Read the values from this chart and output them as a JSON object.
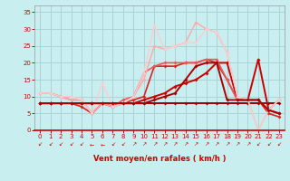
{
  "background_color": "#c8eef0",
  "grid_color": "#aad4d8",
  "xlabel": "Vent moyen/en rafales ( km/h )",
  "xlabel_color": "#cc0000",
  "tick_color": "#cc0000",
  "xlim": [
    -0.5,
    23.5
  ],
  "ylim": [
    0,
    37
  ],
  "yticks": [
    0,
    5,
    10,
    15,
    20,
    25,
    30,
    35
  ],
  "xticks": [
    0,
    1,
    2,
    3,
    4,
    5,
    6,
    7,
    8,
    9,
    10,
    11,
    12,
    13,
    14,
    15,
    16,
    17,
    18,
    19,
    20,
    21,
    22,
    23
  ],
  "lines": [
    {
      "comment": "dark red - nearly flat ~8, slight rise then drop end",
      "x": [
        0,
        1,
        2,
        3,
        4,
        5,
        6,
        7,
        8,
        9,
        10,
        11,
        12,
        13,
        14,
        15,
        16,
        17,
        18,
        19,
        20,
        21,
        22,
        23
      ],
      "y": [
        8,
        8,
        8,
        8,
        8,
        8,
        8,
        8,
        8,
        8,
        8,
        8,
        8,
        8,
        8,
        8,
        8,
        8,
        8,
        8,
        8,
        8,
        8,
        8
      ],
      "color": "#990000",
      "lw": 1.4,
      "marker": "D",
      "ms": 2.0
    },
    {
      "comment": "medium red - rises from 8 to ~20, drops at end",
      "x": [
        0,
        1,
        2,
        3,
        4,
        5,
        6,
        7,
        8,
        9,
        10,
        11,
        12,
        13,
        14,
        15,
        16,
        17,
        18,
        19,
        20,
        21,
        22,
        23
      ],
      "y": [
        8,
        8,
        8,
        8,
        8,
        8,
        8,
        8,
        8,
        8,
        9,
        10,
        11,
        13,
        14,
        15,
        17,
        20,
        20,
        9,
        9,
        21,
        6,
        5
      ],
      "color": "#cc0000",
      "lw": 1.4,
      "marker": "D",
      "ms": 2.0
    },
    {
      "comment": "red - rises more steeply to ~20 stays flat",
      "x": [
        0,
        1,
        2,
        3,
        4,
        5,
        6,
        7,
        8,
        9,
        10,
        11,
        12,
        13,
        14,
        15,
        16,
        17,
        18,
        19,
        20,
        21,
        22,
        23
      ],
      "y": [
        8,
        8,
        8,
        8,
        7,
        5,
        8,
        7,
        8,
        9,
        10,
        19,
        19,
        19,
        20,
        20,
        21,
        20,
        15,
        9,
        9,
        9,
        5,
        4
      ],
      "color": "#dd2222",
      "lw": 1.2,
      "marker": "D",
      "ms": 2.0
    },
    {
      "comment": "salmon/light red - starts ~11, dips at 5, rises to ~20 peak then falls",
      "x": [
        0,
        1,
        2,
        3,
        4,
        5,
        6,
        7,
        8,
        9,
        10,
        11,
        12,
        13,
        14,
        15,
        16,
        17,
        18,
        19,
        20,
        21,
        22,
        23
      ],
      "y": [
        11,
        11,
        10,
        9,
        9,
        5,
        8,
        7,
        9,
        10,
        17,
        19,
        20,
        20,
        20,
        20,
        21,
        21,
        15,
        9,
        9,
        9,
        6,
        9
      ],
      "color": "#ee5555",
      "lw": 1.2,
      "marker": "D",
      "ms": 2.0
    },
    {
      "comment": "light pink - starts 11, dip at 5, rises to 25-32 peak, falls to 0 at 21",
      "x": [
        0,
        1,
        2,
        3,
        4,
        5,
        6,
        7,
        8,
        9,
        10,
        11,
        12,
        13,
        14,
        15,
        16,
        17,
        18,
        19,
        20,
        21,
        22,
        23
      ],
      "y": [
        11,
        11,
        10,
        9,
        9,
        5,
        8,
        7,
        8,
        10,
        15,
        25,
        24,
        25,
        26,
        32,
        30,
        29,
        23,
        10,
        9,
        0,
        6,
        9
      ],
      "color": "#ffaaaa",
      "lw": 1.1,
      "marker": "D",
      "ms": 2.0
    },
    {
      "comment": "lightest pink - starts 11, dip at 5, peak at 11=31, falls to 0 at 21",
      "x": [
        0,
        1,
        2,
        3,
        4,
        5,
        6,
        7,
        8,
        9,
        10,
        11,
        12,
        13,
        14,
        15,
        16,
        17,
        18,
        19,
        20,
        21,
        22,
        23
      ],
      "y": [
        11,
        11,
        10,
        10,
        9,
        5,
        14,
        7,
        8,
        10,
        17,
        31,
        24,
        25,
        26,
        26,
        30,
        29,
        23,
        10,
        9,
        0,
        6,
        9
      ],
      "color": "#ffcccc",
      "lw": 1.0,
      "marker": "D",
      "ms": 2.0
    },
    {
      "comment": "dark brownish red - flat at 8, rises at 14, up to ~20 then drop",
      "x": [
        0,
        1,
        2,
        3,
        4,
        5,
        6,
        7,
        8,
        9,
        10,
        11,
        12,
        13,
        14,
        15,
        16,
        17,
        18,
        19,
        20,
        21,
        22,
        23
      ],
      "y": [
        8,
        8,
        8,
        8,
        8,
        8,
        8,
        8,
        8,
        8,
        8,
        9,
        10,
        11,
        15,
        19,
        20,
        20,
        9,
        9,
        9,
        9,
        6,
        5
      ],
      "color": "#aa0000",
      "lw": 1.4,
      "marker": "D",
      "ms": 2.0
    }
  ],
  "arrows": [
    "↙",
    "↙",
    "↙",
    "↙",
    "↙",
    "←",
    "←",
    "↙",
    "↙",
    "↗",
    "↗",
    "↗",
    "↗",
    "↗",
    "↗",
    "↗",
    "↗",
    "↗",
    "↗",
    "↗",
    "↗",
    "↙",
    "↙",
    "↙"
  ]
}
